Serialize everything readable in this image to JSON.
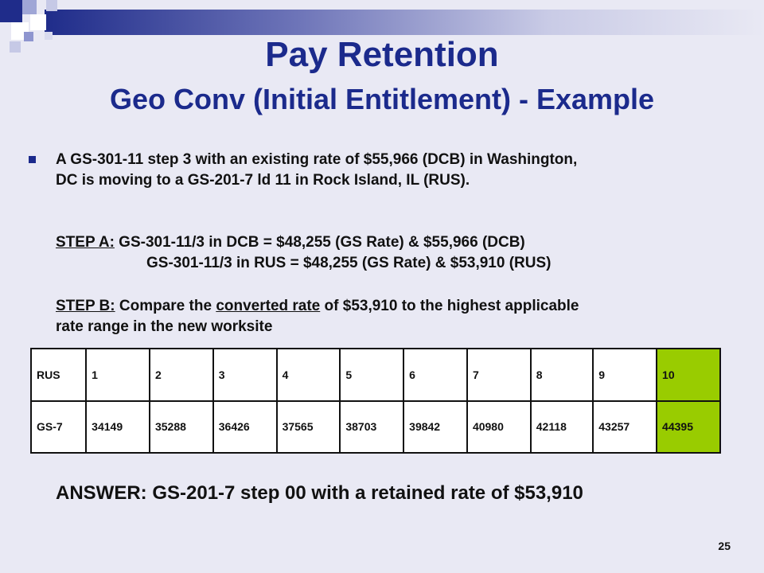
{
  "header": {
    "title": "Pay Retention",
    "subtitle": "Geo Conv (Initial Entitlement) - Example"
  },
  "body": {
    "bullet_line1": "A GS-301-11 step 3 with an existing rate of $55,966 (DCB) in Washington,",
    "bullet_line2": "DC is moving to a GS-201-7 ld 11 in Rock Island, IL (RUS).",
    "step_a_label": "STEP A:",
    "step_a_line1": " GS-301-11/3 in DCB = $48,255 (GS Rate) & $55,966 (DCB)",
    "step_a_line2": "GS-301-11/3 in RUS = $48,255 (GS Rate) & $53,910 (RUS)",
    "step_b_label": "STEP B:",
    "step_b_pre": " Compare the ",
    "step_b_underlined": "converted rate",
    "step_b_post": " of $53,910 to the highest applicable",
    "step_b_line2": "rate range in the new worksite"
  },
  "table": {
    "header": [
      "RUS",
      "1",
      "2",
      "3",
      "4",
      "5",
      "6",
      "7",
      "8",
      "9",
      "10"
    ],
    "row": [
      "GS-7",
      "34149",
      "35288",
      "36426",
      "37565",
      "38703",
      "39842",
      "40980",
      "42118",
      "43257",
      "44395"
    ],
    "highlight_color": "#99cc00"
  },
  "answer": "ANSWER:  GS-201-7 step 00 with a retained rate of $53,910",
  "page_number": "25",
  "colors": {
    "title": "#1b2a8c",
    "background": "#e9e9f4"
  }
}
